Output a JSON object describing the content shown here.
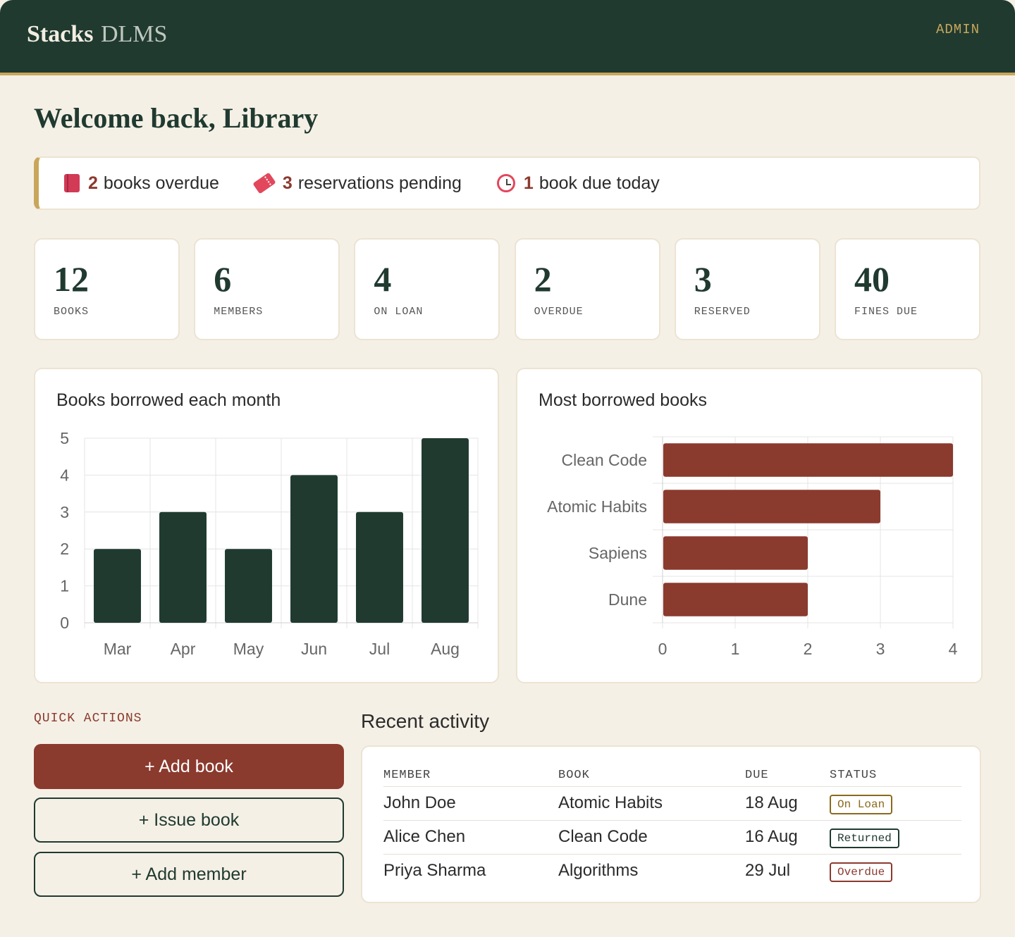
{
  "header": {
    "brand_main": "Stacks",
    "brand_sub": "DLMS",
    "role": "ADMIN"
  },
  "welcome": "Welcome back, Library",
  "alerts": [
    {
      "icon": "book-icon",
      "count": "2",
      "text": "books overdue"
    },
    {
      "icon": "ticket-icon",
      "count": "3",
      "text": "reservations pending"
    },
    {
      "icon": "alarm-clock-icon",
      "count": "1",
      "text": "book due today"
    }
  ],
  "stats": [
    {
      "value": "12",
      "label": "BOOKS"
    },
    {
      "value": "6",
      "label": "MEMBERS"
    },
    {
      "value": "4",
      "label": "ON LOAN"
    },
    {
      "value": "2",
      "label": "OVERDUE"
    },
    {
      "value": "3",
      "label": "RESERVED"
    },
    {
      "value": "40",
      "label": "FINES DUE"
    }
  ],
  "chart_data": [
    {
      "type": "bar",
      "title": "Books borrowed each month",
      "categories": [
        "Mar",
        "Apr",
        "May",
        "Jun",
        "Jul",
        "Aug"
      ],
      "values": [
        2,
        3,
        2,
        4,
        3,
        5
      ],
      "ylim": [
        0,
        5
      ],
      "yticks": [
        0,
        1,
        2,
        3,
        4,
        5
      ],
      "orientation": "vertical",
      "color": "#203a30",
      "grid": true
    },
    {
      "type": "bar",
      "title": "Most borrowed books",
      "categories": [
        "Clean Code",
        "Atomic Habits",
        "Sapiens",
        "Dune"
      ],
      "values": [
        4,
        3,
        2,
        2
      ],
      "xlim": [
        0,
        4
      ],
      "xticks": [
        0,
        1,
        2,
        3,
        4
      ],
      "orientation": "horizontal",
      "color": "#8b3a2e",
      "grid": true
    }
  ],
  "quick_actions": {
    "label": "QUICK ACTIONS",
    "add_book": "+ Add book",
    "issue_book": "+ Issue book",
    "add_member": "+ Add member"
  },
  "recent_activity": {
    "title": "Recent activity",
    "columns": [
      "MEMBER",
      "BOOK",
      "DUE",
      "STATUS"
    ],
    "rows": [
      {
        "member": "John Doe",
        "book": "Atomic Habits",
        "due": "18 Aug",
        "status": "On Loan"
      },
      {
        "member": "Alice Chen",
        "book": "Clean Code",
        "due": "16 Aug",
        "status": "Returned"
      },
      {
        "member": "Priya Sharma",
        "book": "Algorithms",
        "due": "29 Jul",
        "status": "Overdue"
      }
    ]
  },
  "colors": {
    "primary": "#203a30",
    "accent": "#c8a75a",
    "danger": "#8b3a2e",
    "background": "#f5f0e6"
  }
}
